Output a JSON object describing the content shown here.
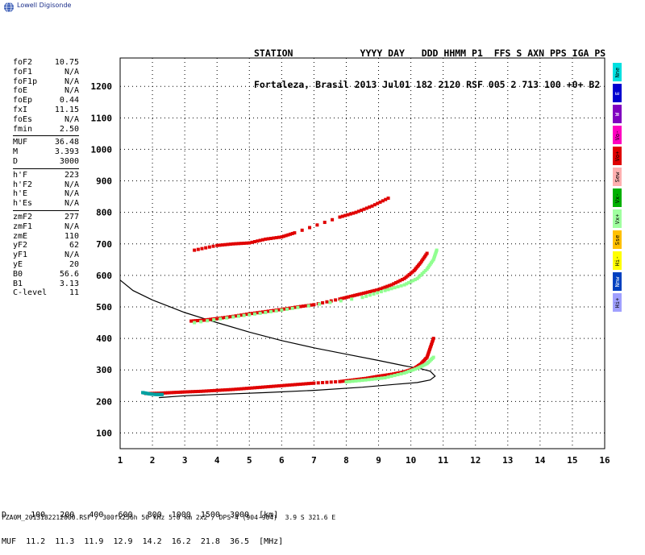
{
  "logo": {
    "text": "Lowell Digisonde"
  },
  "header": {
    "line1": "STATION            YYYY DAY   DDD HHMM P1  FFS S AXN PPS IGA PS",
    "line2": "Fortaleza, Brasil 2013 Jul01 182 2120 RSF 005 2 713 100 +0+ B2"
  },
  "params": {
    "group1": [
      {
        "k": "foF2",
        "v": "10.75"
      },
      {
        "k": "foF1",
        "v": "N/A"
      },
      {
        "k": "foF1p",
        "v": "N/A"
      },
      {
        "k": "foE",
        "v": "N/A"
      },
      {
        "k": "foEp",
        "v": "0.44"
      },
      {
        "k": "fxI",
        "v": "11.15"
      },
      {
        "k": "foEs",
        "v": "N/A"
      },
      {
        "k": "fmin",
        "v": "2.50"
      }
    ],
    "group2": [
      {
        "k": "MUF",
        "v": "36.48"
      },
      {
        "k": "M",
        "v": "3.393"
      },
      {
        "k": "D",
        "v": "3000"
      }
    ],
    "group3": [
      {
        "k": "h'F",
        "v": "223"
      },
      {
        "k": "h'F2",
        "v": "N/A"
      },
      {
        "k": "h'E",
        "v": "N/A"
      },
      {
        "k": "h'Es",
        "v": "N/A"
      }
    ],
    "group4": [
      {
        "k": "zmF2",
        "v": "277"
      },
      {
        "k": "zmF1",
        "v": "N/A"
      },
      {
        "k": "zmE",
        "v": "110"
      },
      {
        "k": "yF2",
        "v": "62"
      },
      {
        "k": "yF1",
        "v": "N/A"
      },
      {
        "k": "yE",
        "v": "20"
      },
      {
        "k": "B0",
        "v": "56.6"
      },
      {
        "k": "B1",
        "v": "3.13"
      },
      {
        "k": "C-level",
        "v": "11"
      }
    ]
  },
  "muf_table": {
    "line1": "D     100   200   400   600   800  1000  1500  3000  [km]",
    "line2": "MUF  11.2  11.3  11.9  12.9  14.2  16.2  21.8  36.5  [MHz]"
  },
  "footer": "FZA0M_2013182212000.RSF / 300fx256h 50 kHz 5.0 km 2x2 / DPS-4 (904-904)  3.9 S 321.6 E",
  "legend": [
    {
      "label": "Nne",
      "color": "#00e0e0"
    },
    {
      "label": "E",
      "color": "#0000d0"
    },
    {
      "label": "W",
      "color": "#8000c0"
    },
    {
      "label": "Vo-",
      "color": "#ff00c0"
    },
    {
      "label": "Vo+",
      "color": "#e00000"
    },
    {
      "label": "Sew",
      "color": "#ffb0b0"
    },
    {
      "label": "Vx-",
      "color": "#00b000"
    },
    {
      "label": "Vx+",
      "color": "#a0ffa0"
    },
    {
      "label": "Sse",
      "color": "#ffc000"
    },
    {
      "label": "Hi-",
      "color": "#ffff00"
    },
    {
      "label": "Nnw",
      "color": "#0040c0"
    },
    {
      "label": "Hi+",
      "color": "#a0a0ff"
    }
  ],
  "chart_data": {
    "type": "scatter",
    "title": "",
    "xlabel": "",
    "ylabel": "",
    "xlim": [
      1,
      16
    ],
    "ylim": [
      50,
      1290
    ],
    "xticks": [
      1,
      2,
      3,
      4,
      5,
      6,
      7,
      8,
      9,
      10,
      11,
      12,
      13,
      14,
      15,
      16
    ],
    "yticks": [
      100,
      200,
      300,
      400,
      500,
      600,
      700,
      800,
      900,
      1000,
      1100,
      1200
    ],
    "grid": true,
    "series": [
      {
        "color": "#e00000",
        "points": [
          [
            1.8,
            225
          ],
          [
            2.2,
            226
          ],
          [
            2.6,
            228
          ],
          [
            3.0,
            230
          ],
          [
            3.5,
            232
          ],
          [
            4.0,
            235
          ],
          [
            4.5,
            238
          ],
          [
            5.0,
            242
          ],
          [
            5.5,
            246
          ],
          [
            6.0,
            250
          ],
          [
            6.5,
            254
          ],
          [
            7.0,
            258
          ],
          [
            7.8,
            263
          ],
          [
            8.2,
            268
          ],
          [
            8.6,
            273
          ],
          [
            9.0,
            280
          ],
          [
            9.4,
            286
          ],
          [
            9.8,
            294
          ],
          [
            10.1,
            304
          ],
          [
            10.3,
            318
          ],
          [
            10.5,
            340
          ],
          [
            10.6,
            370
          ],
          [
            10.7,
            400
          ]
        ]
      },
      {
        "color": "#e00000",
        "points": [
          [
            3.2,
            455
          ],
          [
            3.6,
            458
          ],
          [
            4.0,
            463
          ],
          [
            4.5,
            470
          ],
          [
            5.0,
            478
          ],
          [
            5.5,
            485
          ],
          [
            6.0,
            492
          ],
          [
            6.5,
            500
          ],
          [
            7.0,
            507
          ],
          [
            7.8,
            525
          ],
          [
            8.2,
            535
          ],
          [
            8.6,
            545
          ],
          [
            9.0,
            555
          ],
          [
            9.4,
            570
          ],
          [
            9.8,
            590
          ],
          [
            10.1,
            615
          ],
          [
            10.3,
            640
          ],
          [
            10.5,
            670
          ]
        ]
      },
      {
        "color": "#e00000",
        "points": [
          [
            3.3,
            680
          ],
          [
            4.0,
            695
          ],
          [
            4.5,
            700
          ],
          [
            5.0,
            703
          ],
          [
            5.5,
            715
          ],
          [
            6.0,
            722
          ],
          [
            6.4,
            735
          ],
          [
            7.8,
            785
          ],
          [
            8.3,
            800
          ],
          [
            8.8,
            820
          ],
          [
            9.3,
            845
          ]
        ]
      },
      {
        "color": "#90ff90",
        "points": [
          [
            3.3,
            450
          ],
          [
            4.5,
            468
          ],
          [
            5.5,
            482
          ],
          [
            6.5,
            498
          ],
          [
            8.5,
            530
          ],
          [
            9.2,
            552
          ],
          [
            9.8,
            570
          ],
          [
            10.2,
            590
          ],
          [
            10.5,
            620
          ],
          [
            10.7,
            650
          ],
          [
            10.8,
            680
          ]
        ]
      },
      {
        "color": "#90ff90",
        "points": [
          [
            8.0,
            262
          ],
          [
            8.6,
            268
          ],
          [
            9.2,
            275
          ],
          [
            9.8,
            290
          ],
          [
            10.2,
            305
          ],
          [
            10.5,
            320
          ],
          [
            10.7,
            340
          ]
        ]
      },
      {
        "color": "#00a0a0",
        "points": [
          [
            1.7,
            228
          ],
          [
            1.9,
            224
          ],
          [
            2.1,
            222
          ],
          [
            2.3,
            222
          ]
        ]
      }
    ],
    "profile_curve": {
      "color": "#000000",
      "points": [
        [
          1.0,
          585
        ],
        [
          1.4,
          552
        ],
        [
          2.0,
          522
        ],
        [
          3.0,
          482
        ],
        [
          4.0,
          450
        ],
        [
          5.0,
          420
        ],
        [
          6.0,
          393
        ],
        [
          7.0,
          370
        ],
        [
          8.0,
          350
        ],
        [
          9.0,
          330
        ],
        [
          9.8,
          313
        ],
        [
          10.3,
          304
        ],
        [
          10.6,
          296
        ],
        [
          10.75,
          280
        ],
        [
          10.6,
          268
        ],
        [
          10.2,
          260
        ],
        [
          9.5,
          254
        ],
        [
          8.5,
          245
        ],
        [
          7.0,
          235
        ],
        [
          5.5,
          228
        ],
        [
          4.0,
          222
        ],
        [
          3.0,
          218
        ],
        [
          2.2,
          212
        ]
      ]
    }
  }
}
